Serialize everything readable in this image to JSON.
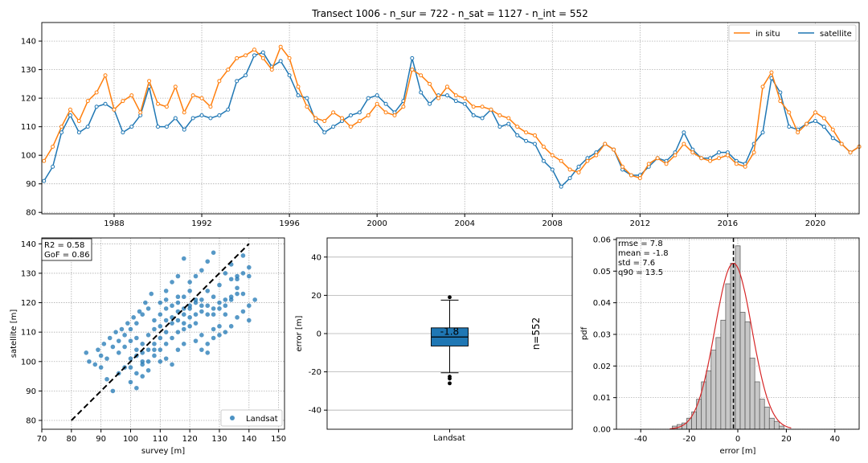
{
  "colors": {
    "insitu": "#ff7f0e",
    "satellite": "#1f77b4",
    "fit": "#d62728",
    "hist": "#c8c8c8"
  },
  "chart_data": [
    {
      "type": "line",
      "title": "Transect 1006 - n_sur = 722 - n_sat = 1127 - n_int = 552",
      "xlim": [
        1984.7,
        2022.0
      ],
      "ylim": [
        79.5,
        146.5
      ],
      "x_ticks": [
        1988,
        1992,
        1996,
        2000,
        2004,
        2008,
        2012,
        2016,
        2020
      ],
      "y_ticks": [
        80,
        90,
        100,
        110,
        120,
        130,
        140
      ],
      "legend": {
        "placement": "top-right",
        "entries": [
          "in situ",
          "satellite"
        ]
      },
      "grid": true,
      "series": [
        {
          "name": "in situ",
          "x": [
            1984.8,
            1985.2,
            1985.6,
            1986.0,
            1986.4,
            1986.8,
            1987.2,
            1987.6,
            1988.0,
            1988.4,
            1988.8,
            1989.2,
            1989.6,
            1990.0,
            1990.4,
            1990.8,
            1991.2,
            1991.6,
            1992.0,
            1992.4,
            1992.8,
            1993.2,
            1993.6,
            1994.0,
            1994.4,
            1994.8,
            1995.2,
            1995.6,
            1996.0,
            1996.4,
            1996.8,
            1997.2,
            1997.6,
            1998.0,
            1998.4,
            1998.8,
            1999.2,
            1999.6,
            2000.0,
            2000.4,
            2000.8,
            2001.2,
            2001.6,
            2002.0,
            2002.4,
            2002.8,
            2003.2,
            2003.6,
            2004.0,
            2004.4,
            2004.8,
            2005.2,
            2005.6,
            2006.0,
            2006.4,
            2006.8,
            2007.2,
            2007.6,
            2008.0,
            2008.4,
            2008.8,
            2009.2,
            2009.6,
            2010.0,
            2010.4,
            2010.8,
            2011.2,
            2011.6,
            2012.0,
            2012.4,
            2012.8,
            2013.2,
            2013.6,
            2014.0,
            2014.4,
            2014.8,
            2015.2,
            2015.6,
            2016.0,
            2016.4,
            2016.8,
            2017.2,
            2017.6,
            2018.0,
            2018.4,
            2018.8,
            2019.2,
            2019.6,
            2020.0,
            2020.4,
            2020.8,
            2021.2,
            2021.6,
            2022.0
          ],
          "y": [
            98,
            103,
            110,
            116,
            112,
            119,
            122,
            128,
            116,
            119,
            121,
            115,
            126,
            118,
            117,
            124,
            115,
            121,
            120,
            117,
            126,
            130,
            134,
            135,
            137,
            134,
            130,
            138,
            134,
            124,
            117,
            113,
            112,
            115,
            113,
            110,
            112,
            114,
            118,
            115,
            114,
            117,
            130,
            128,
            125,
            120,
            124,
            121,
            120,
            117,
            117,
            116,
            114,
            113,
            110,
            108,
            107,
            103,
            100,
            98,
            95,
            94,
            98,
            100,
            104,
            102,
            96,
            93,
            92,
            97,
            99,
            97,
            100,
            104,
            101,
            99,
            98,
            99,
            100,
            97,
            96,
            101,
            124,
            129,
            119,
            115,
            108,
            111,
            115,
            113,
            109,
            104,
            101,
            103
          ]
        },
        {
          "name": "satellite",
          "x": [
            1984.8,
            1985.2,
            1985.6,
            1986.0,
            1986.4,
            1986.8,
            1987.2,
            1987.6,
            1988.0,
            1988.4,
            1988.8,
            1989.2,
            1989.6,
            1990.0,
            1990.4,
            1990.8,
            1991.2,
            1991.6,
            1992.0,
            1992.4,
            1992.8,
            1993.2,
            1993.6,
            1994.0,
            1994.4,
            1994.8,
            1995.2,
            1995.6,
            1996.0,
            1996.4,
            1996.8,
            1997.2,
            1997.6,
            1998.0,
            1998.4,
            1998.8,
            1999.2,
            1999.6,
            2000.0,
            2000.4,
            2000.8,
            2001.2,
            2001.6,
            2002.0,
            2002.4,
            2002.8,
            2003.2,
            2003.6,
            2004.0,
            2004.4,
            2004.8,
            2005.2,
            2005.6,
            2006.0,
            2006.4,
            2006.8,
            2007.2,
            2007.6,
            2008.0,
            2008.4,
            2008.8,
            2009.2,
            2009.6,
            2010.0,
            2010.4,
            2010.8,
            2011.2,
            2011.6,
            2012.0,
            2012.4,
            2012.8,
            2013.2,
            2013.6,
            2014.0,
            2014.4,
            2014.8,
            2015.2,
            2015.6,
            2016.0,
            2016.4,
            2016.8,
            2017.2,
            2017.6,
            2018.0,
            2018.4,
            2018.8,
            2019.2,
            2019.6,
            2020.0,
            2020.4,
            2020.8,
            2021.2,
            2021.6,
            2022.0
          ],
          "y": [
            91,
            96,
            108,
            114,
            108,
            110,
            117,
            118,
            116,
            108,
            110,
            114,
            124,
            110,
            110,
            113,
            109,
            113,
            114,
            113,
            114,
            116,
            126,
            128,
            135,
            136,
            131,
            133,
            128,
            121,
            120,
            112,
            108,
            110,
            112,
            114,
            115,
            120,
            121,
            118,
            115,
            119,
            134,
            122,
            118,
            121,
            121,
            119,
            118,
            114,
            113,
            116,
            110,
            111,
            107,
            105,
            104,
            98,
            95,
            89,
            92,
            96,
            99,
            101,
            104,
            102,
            95,
            93,
            93,
            96,
            99,
            98,
            101,
            108,
            102,
            99,
            99,
            101,
            101,
            98,
            97,
            104,
            108,
            127,
            122,
            110,
            109,
            111,
            112,
            110,
            106,
            104,
            101,
            103
          ]
        }
      ]
    },
    {
      "type": "scatter",
      "xlabel": "survey [m]",
      "ylabel": "satellite [m]",
      "xlim": [
        70,
        152
      ],
      "ylim": [
        77,
        142
      ],
      "x_ticks": [
        70,
        80,
        90,
        100,
        110,
        120,
        130,
        140,
        150
      ],
      "y_ticks": [
        80,
        90,
        100,
        110,
        120,
        130,
        140
      ],
      "annotation": [
        "R2 = 0.58",
        "GoF = 0.86"
      ],
      "one_to_one": [
        [
          80,
          80
        ],
        [
          140,
          140
        ]
      ],
      "legend": {
        "placement": "bottom-right",
        "entries": [
          "Landsat"
        ]
      },
      "grid": true,
      "points": [
        [
          98,
          98
        ],
        [
          102,
          104
        ],
        [
          104,
          100
        ],
        [
          108,
          106
        ],
        [
          110,
          108
        ],
        [
          112,
          110
        ],
        [
          114,
          113
        ],
        [
          116,
          114
        ],
        [
          118,
          116
        ],
        [
          120,
          118
        ],
        [
          122,
          121
        ],
        [
          124,
          119
        ],
        [
          126,
          124
        ],
        [
          128,
          122
        ],
        [
          130,
          126
        ],
        [
          132,
          130
        ],
        [
          134,
          133
        ],
        [
          136,
          129
        ],
        [
          138,
          136
        ],
        [
          140,
          129
        ],
        [
          110,
          120
        ],
        [
          112,
          124
        ],
        [
          116,
          122
        ],
        [
          118,
          111
        ],
        [
          120,
          112
        ],
        [
          122,
          113
        ],
        [
          124,
          109
        ],
        [
          126,
          106
        ],
        [
          128,
          111
        ],
        [
          130,
          112
        ],
        [
          132,
          116
        ],
        [
          134,
          121
        ],
        [
          136,
          123
        ],
        [
          138,
          123
        ],
        [
          140,
          119
        ],
        [
          142,
          121
        ],
        [
          96,
          96
        ],
        [
          94,
          90
        ],
        [
          92,
          94
        ],
        [
          90,
          98
        ],
        [
          88,
          99
        ],
        [
          100,
          93
        ],
        [
          102,
          91
        ],
        [
          104,
          95
        ],
        [
          106,
          97
        ],
        [
          108,
          104
        ],
        [
          100,
          101
        ],
        [
          102,
          102
        ],
        [
          104,
          103
        ],
        [
          106,
          104
        ],
        [
          96,
          103
        ],
        [
          98,
          105
        ],
        [
          100,
          107
        ],
        [
          102,
          108
        ],
        [
          104,
          106
        ],
        [
          106,
          109
        ],
        [
          108,
          111
        ],
        [
          110,
          112
        ],
        [
          112,
          114
        ],
        [
          114,
          115
        ],
        [
          116,
          117
        ],
        [
          118,
          118
        ],
        [
          120,
          119
        ],
        [
          122,
          120
        ],
        [
          124,
          121
        ],
        [
          126,
          119
        ],
        [
          128,
          118
        ],
        [
          130,
          120
        ],
        [
          132,
          119
        ],
        [
          134,
          122
        ],
        [
          136,
          125
        ],
        [
          138,
          130
        ],
        [
          140,
          132
        ],
        [
          110,
          100
        ],
        [
          112,
          101
        ],
        [
          114,
          99
        ],
        [
          116,
          104
        ],
        [
          118,
          106
        ],
        [
          108,
          114
        ],
        [
          110,
          116
        ],
        [
          112,
          118
        ],
        [
          114,
          119
        ],
        [
          116,
          120
        ],
        [
          118,
          122
        ],
        [
          120,
          124
        ],
        [
          106,
          118
        ],
        [
          104,
          116
        ],
        [
          102,
          113
        ],
        [
          100,
          111
        ],
        [
          98,
          109
        ],
        [
          96,
          107
        ],
        [
          94,
          105
        ],
        [
          92,
          101
        ],
        [
          90,
          102
        ],
        [
          86,
          100
        ],
        [
          120,
          127
        ],
        [
          122,
          129
        ],
        [
          124,
          131
        ],
        [
          126,
          134
        ],
        [
          128,
          137
        ],
        [
          118,
          135
        ],
        [
          116,
          129
        ],
        [
          114,
          127
        ],
        [
          112,
          121
        ],
        [
          122,
          107
        ],
        [
          124,
          104
        ],
        [
          126,
          103
        ],
        [
          128,
          108
        ],
        [
          130,
          109
        ],
        [
          132,
          110
        ],
        [
          134,
          112
        ],
        [
          136,
          115
        ],
        [
          138,
          117
        ],
        [
          140,
          114
        ],
        [
          105,
          120
        ],
        [
          107,
          123
        ],
        [
          103,
          117
        ],
        [
          101,
          115
        ],
        [
          99,
          113
        ],
        [
          97,
          111
        ],
        [
          95,
          110
        ],
        [
          93,
          108
        ],
        [
          91,
          106
        ],
        [
          89,
          104
        ],
        [
          85,
          103
        ],
        [
          100,
          98
        ],
        [
          102,
          96
        ],
        [
          104,
          99
        ],
        [
          106,
          100
        ],
        [
          108,
          102
        ],
        [
          110,
          104
        ],
        [
          112,
          106
        ],
        [
          114,
          108
        ],
        [
          116,
          110
        ],
        [
          118,
          113
        ],
        [
          120,
          115
        ],
        [
          122,
          116
        ],
        [
          124,
          117
        ],
        [
          126,
          116
        ],
        [
          128,
          116
        ],
        [
          130,
          118
        ],
        [
          132,
          121
        ],
        [
          134,
          128
        ],
        [
          136,
          128
        ]
      ]
    },
    {
      "type": "box",
      "ylabel": "error [m]",
      "category": "Landsat",
      "ylim": [
        -50,
        50
      ],
      "y_ticks": [
        -40,
        -20,
        0,
        20,
        40
      ],
      "median": -1.8,
      "median_label": "-1.8",
      "q1": -6.5,
      "q3": 3.0,
      "whisker_low": -20.5,
      "whisker_high": 17.5,
      "outliers": [
        19,
        -22.5,
        -23.5,
        -26
      ],
      "side_label": "n=552",
      "grid": true
    },
    {
      "type": "histogram",
      "xlabel": "error [m]",
      "ylabel": "pdf",
      "xlim": [
        -50,
        50
      ],
      "ylim": [
        0,
        0.0605
      ],
      "x_ticks": [
        -40,
        -20,
        0,
        20,
        40
      ],
      "y_ticks": [
        0.0,
        0.01,
        0.02,
        0.03,
        0.04,
        0.05,
        0.06
      ],
      "y_tick_labels": [
        "0.00",
        "0.01",
        "0.02",
        "0.03",
        "0.04",
        "0.05",
        "0.06"
      ],
      "annotation": [
        "rmse = 7.8",
        "mean = -1.8",
        "std = 7.6",
        "q90 = 13.5"
      ],
      "bins": [
        -27,
        -25,
        -23,
        -21,
        -19,
        -17,
        -15,
        -13,
        -11,
        -9,
        -7,
        -5,
        -3,
        -1,
        1,
        3,
        5,
        7,
        9,
        11,
        13,
        15,
        17,
        19
      ],
      "values": [
        0.001,
        0.0015,
        0.002,
        0.0035,
        0.0055,
        0.0095,
        0.015,
        0.0185,
        0.025,
        0.029,
        0.0345,
        0.046,
        0.0525,
        0.058,
        0.037,
        0.034,
        0.0225,
        0.015,
        0.0095,
        0.007,
        0.0035,
        0.0025,
        0.001
      ],
      "normal_fit": {
        "mean": -1.8,
        "std": 7.6
      },
      "mean_line": -1.8,
      "grid": true
    }
  ]
}
